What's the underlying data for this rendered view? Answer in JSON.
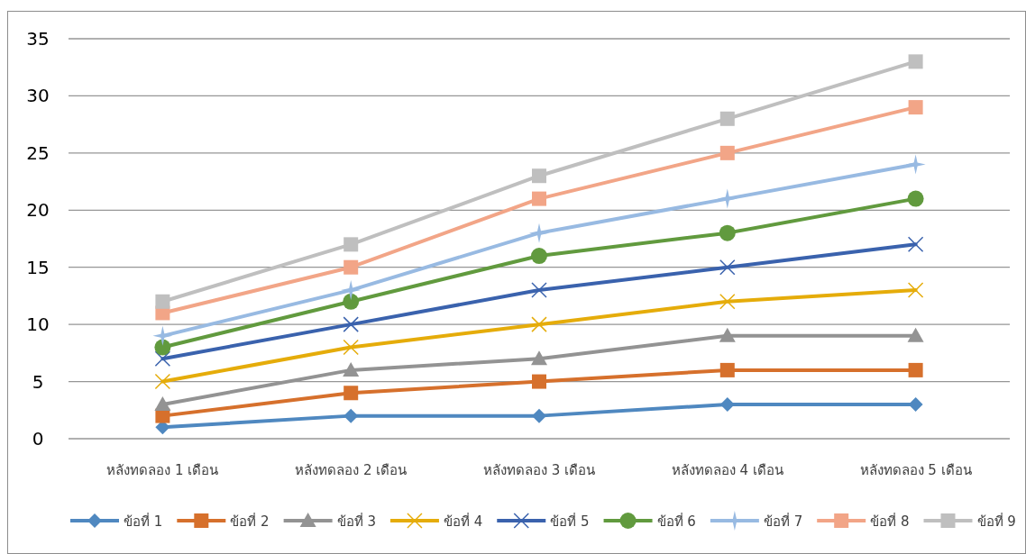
{
  "chart_data": {
    "type": "line",
    "categories": [
      "หลังทดลอง 1 เดือน",
      "หลังทดลอง 2 เดือน",
      "หลังทดลอง 3 เดือน",
      "หลังทดลอง 4 เดือน",
      "หลังทดลอง 5 เดือน"
    ],
    "series": [
      {
        "name": "ข้อที่ 1",
        "color": "#4f88c0",
        "marker": "diamond",
        "values": [
          1,
          2,
          2,
          3,
          3
        ]
      },
      {
        "name": "ข้อที่ 2",
        "color": "#d6702c",
        "marker": "square",
        "values": [
          2,
          4,
          5,
          6,
          6
        ]
      },
      {
        "name": "ข้อที่ 3",
        "color": "#939393",
        "marker": "triangle",
        "values": [
          3,
          6,
          7,
          9,
          9
        ]
      },
      {
        "name": "ข้อที่ 4",
        "color": "#e5ac0a",
        "marker": "cross",
        "values": [
          5,
          8,
          10,
          12,
          13
        ]
      },
      {
        "name": "ข้อที่ 5",
        "color": "#3a62ad",
        "marker": "cross",
        "values": [
          7,
          10,
          13,
          15,
          17
        ]
      },
      {
        "name": "ข้อที่ 6",
        "color": "#619a3e",
        "marker": "circle",
        "values": [
          8,
          12,
          16,
          18,
          21
        ]
      },
      {
        "name": "ข้อที่ 7",
        "color": "#98bae2",
        "marker": "star",
        "values": [
          9,
          13,
          18,
          21,
          24
        ]
      },
      {
        "name": "ข้อที่ 8",
        "color": "#f2a587",
        "marker": "square",
        "values": [
          11,
          15,
          21,
          25,
          29
        ]
      },
      {
        "name": "ข้อที่ 9",
        "color": "#bfbfbf",
        "marker": "square",
        "values": [
          12,
          17,
          23,
          28,
          33
        ]
      }
    ],
    "ylim": [
      0,
      35
    ],
    "yticks": [
      0,
      5,
      10,
      15,
      20,
      25,
      30,
      35
    ],
    "grid": "y",
    "legend": "bottom"
  }
}
